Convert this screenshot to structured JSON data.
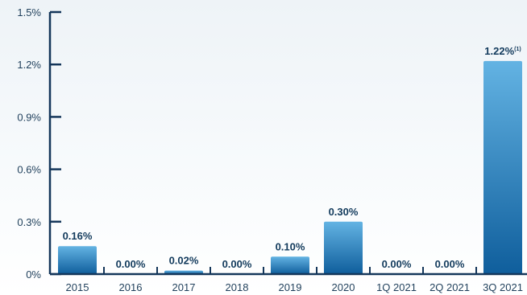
{
  "chart_data": {
    "type": "bar",
    "categories": [
      "2015",
      "2016",
      "2017",
      "2018",
      "2019",
      "2020",
      "1Q 2021",
      "2Q 2021",
      "3Q 2021"
    ],
    "values": [
      0.16,
      0.0,
      0.02,
      0.0,
      0.1,
      0.3,
      0.0,
      0.0,
      1.22
    ],
    "data_labels": [
      "0.16%",
      "0.00%",
      "0.02%",
      "0.00%",
      "0.10%",
      "0.30%",
      "0.00%",
      "0.00%",
      "1.22%"
    ],
    "data_label_notes": [
      "",
      "",
      "",
      "",
      "",
      "",
      "",
      "",
      "(1)"
    ],
    "ylim": [
      0,
      1.5
    ],
    "yticks": [
      0,
      0.3,
      0.6,
      0.9,
      1.2,
      1.5
    ],
    "ytick_labels": [
      "0%",
      "0.3%",
      "0.6%",
      "0.9%",
      "1.2%",
      "1.5%"
    ],
    "title": "",
    "xlabel": "",
    "ylabel": "",
    "grid": false,
    "colors": {
      "bar_top": "#63b3e3",
      "bar_bottom": "#0f5e9c",
      "axis": "#14365a",
      "text": "#1f3f5b",
      "label": "#123a5c"
    }
  }
}
